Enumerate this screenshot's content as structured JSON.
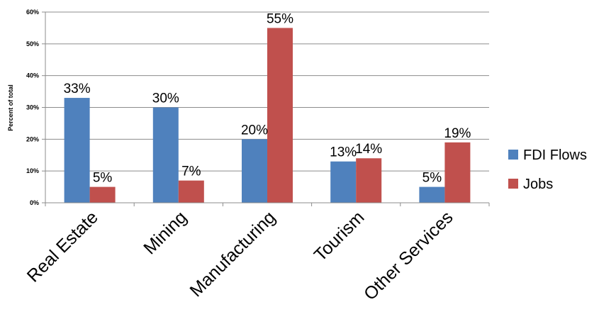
{
  "chart_data": {
    "type": "bar",
    "categories": [
      "Real Estate",
      "Mining",
      "Manufacturing",
      "Tourism",
      "Other Services"
    ],
    "series": [
      {
        "name": "FDI Flows",
        "values": [
          33,
          30,
          20,
          13,
          5
        ],
        "color": "#4f81bd"
      },
      {
        "name": "Jobs",
        "values": [
          5,
          7,
          55,
          14,
          19
        ],
        "color": "#c0504d"
      }
    ],
    "ylabel": "Percent of total",
    "ylim": [
      0,
      60
    ],
    "yticks": [
      "0%",
      "10%",
      "20%",
      "30%",
      "40%",
      "50%",
      "60%"
    ],
    "data_labels": [
      [
        "33%",
        "30%",
        "20%",
        "13%",
        "5%"
      ],
      [
        "5%",
        "7%",
        "55%",
        "14%",
        "19%"
      ]
    ],
    "grid": true,
    "legend_position": "right"
  }
}
